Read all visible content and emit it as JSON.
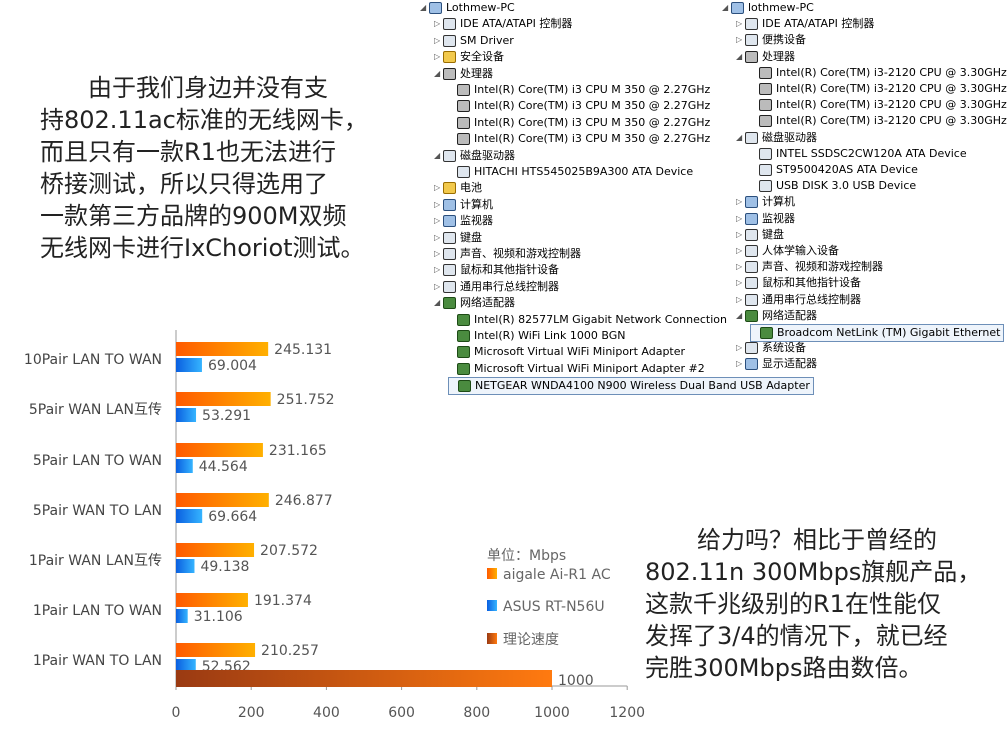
{
  "text_top": [
    "由于我们身边并没有支",
    "持802.11ac标准的无线网卡，",
    "而且只有一款R1也无法进行",
    "桥接测试，所以只得选用了",
    "一款第三方品牌的900M双频",
    "无线网卡进行IxChoriot测试。"
  ],
  "text_bottom": [
    "给力吗？相比于曾经的",
    "802.11n 300Mbps旗舰产品，",
    "这款千兆级别的R1在性能仅",
    "发挥了3/4的情况下，就已经",
    "完胜300Mbps路由数倍。"
  ],
  "tree_left": {
    "rows": [
      {
        "label": "Lothmew-PC",
        "icon": "computer-icon",
        "indent": 0,
        "exp": "◢"
      },
      {
        "label": "IDE ATA/ATAPI 控制器",
        "icon": "ide-controller-icon",
        "indent": 1,
        "exp": "▷"
      },
      {
        "label": "SM Driver",
        "icon": "driver-icon",
        "indent": 1,
        "exp": "▷"
      },
      {
        "label": "安全设备",
        "icon": "security-device-icon",
        "indent": 1,
        "exp": "▷"
      },
      {
        "label": "处理器",
        "icon": "processor-icon",
        "indent": 1,
        "exp": "◢"
      },
      {
        "label": "Intel(R) Core(TM) i3 CPU        M 350  @ 2.27GHz",
        "icon": "cpu-icon",
        "indent": 2,
        "exp": ""
      },
      {
        "label": "Intel(R) Core(TM) i3 CPU        M 350  @ 2.27GHz",
        "icon": "cpu-icon",
        "indent": 2,
        "exp": ""
      },
      {
        "label": "Intel(R) Core(TM) i3 CPU        M 350  @ 2.27GHz",
        "icon": "cpu-icon",
        "indent": 2,
        "exp": ""
      },
      {
        "label": "Intel(R) Core(TM) i3 CPU        M 350  @ 2.27GHz",
        "icon": "cpu-icon",
        "indent": 2,
        "exp": ""
      },
      {
        "label": "磁盘驱动器",
        "icon": "disk-drive-icon",
        "indent": 1,
        "exp": "◢"
      },
      {
        "label": "HITACHI HTS545025B9A300 ATA Device",
        "icon": "disk-icon",
        "indent": 2,
        "exp": ""
      },
      {
        "label": "电池",
        "icon": "battery-icon",
        "indent": 1,
        "exp": "▷"
      },
      {
        "label": "计算机",
        "icon": "computer-icon",
        "indent": 1,
        "exp": "▷"
      },
      {
        "label": "监视器",
        "icon": "monitor-icon",
        "indent": 1,
        "exp": "▷"
      },
      {
        "label": "键盘",
        "icon": "keyboard-icon",
        "indent": 1,
        "exp": "▷"
      },
      {
        "label": "声音、视频和游戏控制器",
        "icon": "sound-icon",
        "indent": 1,
        "exp": "▷"
      },
      {
        "label": "鼠标和其他指针设备",
        "icon": "mouse-icon",
        "indent": 1,
        "exp": "▷"
      },
      {
        "label": "通用串行总线控制器",
        "icon": "usb-icon",
        "indent": 1,
        "exp": "▷"
      },
      {
        "label": "网络适配器",
        "icon": "network-adapter-icon",
        "indent": 1,
        "exp": "◢"
      },
      {
        "label": "Intel(R) 82577LM Gigabit Network Connection",
        "icon": "nic-icon",
        "indent": 2,
        "exp": ""
      },
      {
        "label": "Intel(R) WiFi Link 1000 BGN",
        "icon": "nic-icon",
        "indent": 2,
        "exp": ""
      },
      {
        "label": "Microsoft Virtual WiFi Miniport Adapter",
        "icon": "nic-icon",
        "indent": 2,
        "exp": ""
      },
      {
        "label": "Microsoft Virtual WiFi Miniport Adapter #2",
        "icon": "nic-icon",
        "indent": 2,
        "exp": ""
      },
      {
        "label": "NETGEAR WNDA4100 N900 Wireless Dual Band USB Adapter",
        "icon": "nic-icon",
        "indent": 2,
        "exp": "",
        "selected": true
      }
    ]
  },
  "tree_right": {
    "rows": [
      {
        "label": "lothmew-PC",
        "icon": "computer-icon",
        "indent": 0,
        "exp": "◢"
      },
      {
        "label": "IDE ATA/ATAPI 控制器",
        "icon": "ide-controller-icon",
        "indent": 1,
        "exp": "▷"
      },
      {
        "label": "便携设备",
        "icon": "portable-device-icon",
        "indent": 1,
        "exp": "▷"
      },
      {
        "label": "处理器",
        "icon": "processor-icon",
        "indent": 1,
        "exp": "◢"
      },
      {
        "label": "Intel(R) Core(TM) i3-2120 CPU @ 3.30GHz",
        "icon": "cpu-icon",
        "indent": 2,
        "exp": ""
      },
      {
        "label": "Intel(R) Core(TM) i3-2120 CPU @ 3.30GHz",
        "icon": "cpu-icon",
        "indent": 2,
        "exp": ""
      },
      {
        "label": "Intel(R) Core(TM) i3-2120 CPU @ 3.30GHz",
        "icon": "cpu-icon",
        "indent": 2,
        "exp": ""
      },
      {
        "label": "Intel(R) Core(TM) i3-2120 CPU @ 3.30GHz",
        "icon": "cpu-icon",
        "indent": 2,
        "exp": ""
      },
      {
        "label": "磁盘驱动器",
        "icon": "disk-drive-icon",
        "indent": 1,
        "exp": "◢"
      },
      {
        "label": "INTEL SSDSC2CW120A ATA Device",
        "icon": "disk-icon",
        "indent": 2,
        "exp": ""
      },
      {
        "label": "ST9500420AS ATA Device",
        "icon": "disk-icon",
        "indent": 2,
        "exp": ""
      },
      {
        "label": "USB DISK 3.0 USB Device",
        "icon": "disk-icon",
        "indent": 2,
        "exp": ""
      },
      {
        "label": "计算机",
        "icon": "computer-icon",
        "indent": 1,
        "exp": "▷"
      },
      {
        "label": "监视器",
        "icon": "monitor-icon",
        "indent": 1,
        "exp": "▷"
      },
      {
        "label": "键盘",
        "icon": "keyboard-icon",
        "indent": 1,
        "exp": "▷"
      },
      {
        "label": "人体学输入设备",
        "icon": "hid-icon",
        "indent": 1,
        "exp": "▷"
      },
      {
        "label": "声音、视频和游戏控制器",
        "icon": "sound-icon",
        "indent": 1,
        "exp": "▷"
      },
      {
        "label": "鼠标和其他指针设备",
        "icon": "mouse-icon",
        "indent": 1,
        "exp": "▷"
      },
      {
        "label": "通用串行总线控制器",
        "icon": "usb-icon",
        "indent": 1,
        "exp": "▷"
      },
      {
        "label": "网络适配器",
        "icon": "network-adapter-icon",
        "indent": 1,
        "exp": "◢"
      },
      {
        "label": "Broadcom NetLink (TM) Gigabit Ethernet",
        "icon": "nic-icon",
        "indent": 2,
        "exp": "",
        "selected": true
      },
      {
        "label": "系统设备",
        "icon": "system-device-icon",
        "indent": 1,
        "exp": "▷"
      },
      {
        "label": "显示适配器",
        "icon": "display-adapter-icon",
        "indent": 1,
        "exp": "▷"
      }
    ]
  },
  "chart_data": {
    "type": "bar",
    "orientation": "horizontal",
    "categories": [
      "10Pair LAN TO WAN",
      "5Pair WAN LAN互传",
      "5Pair LAN TO WAN",
      "5Pair WAN TO LAN",
      "1Pair WAN LAN互传",
      "1Pair LAN TO WAN",
      "1Pair WAN TO LAN"
    ],
    "series": [
      {
        "name": "aigale Ai-R1 AC",
        "color": "#ff8a00",
        "values": [
          245.131,
          251.752,
          231.165,
          246.877,
          207.572,
          191.374,
          210.257
        ]
      },
      {
        "name": "ASUS RT-N56U",
        "color": "#1a8cff",
        "values": [
          69.004,
          53.291,
          44.564,
          69.664,
          49.138,
          31.106,
          52.562
        ]
      },
      {
        "name": "理论速度",
        "color": "#c0501a",
        "values": [
          null,
          null,
          null,
          null,
          null,
          null,
          1000
        ]
      }
    ],
    "value_labels": [
      [
        "245.131",
        "251.752",
        "231.165",
        "246.877",
        "207.572",
        "191.374",
        "210.257"
      ],
      [
        "69.004",
        "53.291",
        "44.564",
        "69.664",
        "49.138",
        "31.106",
        "52.562"
      ],
      [
        "",
        "",
        "",
        "",
        "",
        "",
        "1000"
      ]
    ],
    "xticks": [
      "0",
      "200",
      "400",
      "600",
      "800",
      "1000",
      "1200"
    ],
    "xlim": [
      0,
      1200
    ],
    "unit_label": "单位：Mbps",
    "legend_position": "right",
    "grid": false
  }
}
